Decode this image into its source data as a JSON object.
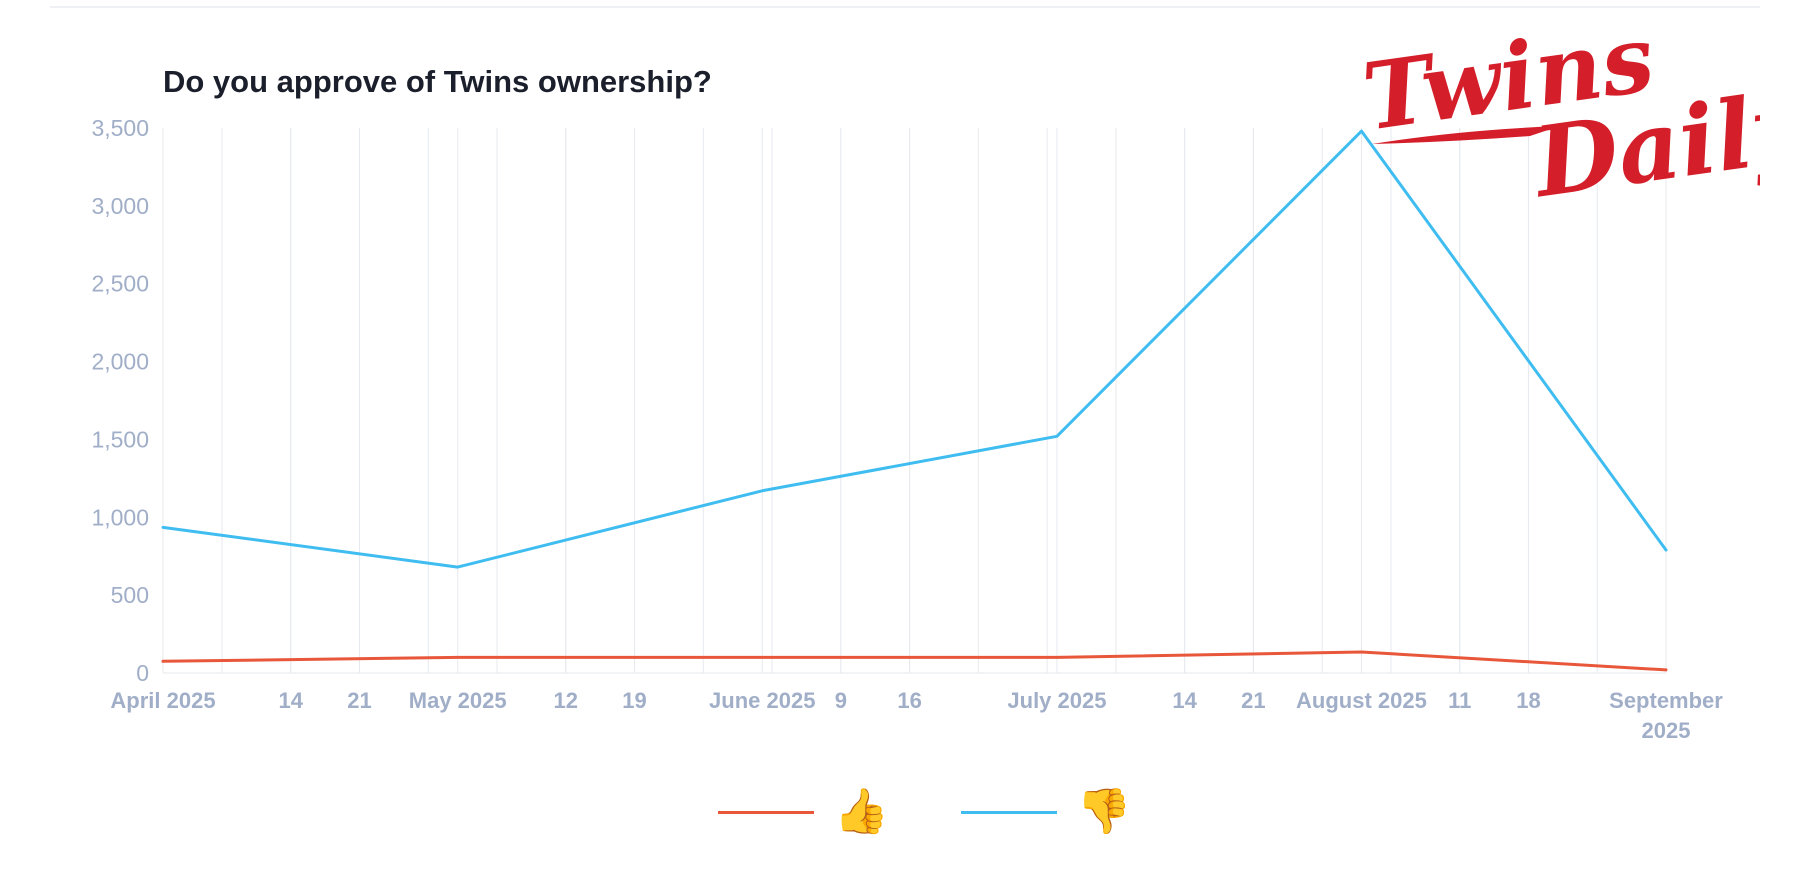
{
  "chart_data": {
    "type": "line",
    "title": "Do you approve of Twins ownership?",
    "xlabel": "",
    "ylabel": "",
    "ylim": [
      0,
      3500
    ],
    "yticks": [
      "0",
      "500",
      "1,000",
      "1,500",
      "2,000",
      "2,500",
      "3,000",
      "3,500"
    ],
    "xlim": [
      "2025-04-01",
      "2025-09-01"
    ],
    "xticks": [
      {
        "date": "2025-04-01",
        "label": "April 2025",
        "major": true
      },
      {
        "date": "2025-04-14",
        "label": "14",
        "major": false
      },
      {
        "date": "2025-04-21",
        "label": "21",
        "major": false
      },
      {
        "date": "2025-05-01",
        "label": "May 2025",
        "major": true
      },
      {
        "date": "2025-05-12",
        "label": "12",
        "major": false
      },
      {
        "date": "2025-05-19",
        "label": "19",
        "major": false
      },
      {
        "date": "2025-06-01",
        "label": "June 2025",
        "major": true
      },
      {
        "date": "2025-06-09",
        "label": "9",
        "major": false
      },
      {
        "date": "2025-06-16",
        "label": "16",
        "major": false
      },
      {
        "date": "2025-07-01",
        "label": "July 2025",
        "major": true
      },
      {
        "date": "2025-07-14",
        "label": "14",
        "major": false
      },
      {
        "date": "2025-07-21",
        "label": "21",
        "major": false
      },
      {
        "date": "2025-08-01",
        "label": "August 2025",
        "major": true
      },
      {
        "date": "2025-08-11",
        "label": "11",
        "major": false
      },
      {
        "date": "2025-08-18",
        "label": "18",
        "major": false
      },
      {
        "date": "2025-09-01",
        "label": "September 2025",
        "major": true
      }
    ],
    "grid": true,
    "legend_position": "bottom",
    "series": [
      {
        "name": "👍",
        "color": "#e8573a",
        "x": [
          "2025-04-01",
          "2025-05-01",
          "2025-06-01",
          "2025-07-01",
          "2025-08-01",
          "2025-09-01"
        ],
        "values": [
          75,
          100,
          100,
          100,
          135,
          20
        ]
      },
      {
        "name": "👎",
        "color": "#3fbdf0",
        "x": [
          "2025-04-01",
          "2025-05-01",
          "2025-06-01",
          "2025-07-01",
          "2025-08-01",
          "2025-09-01"
        ],
        "values": [
          935,
          680,
          1170,
          1520,
          3480,
          790
        ]
      }
    ]
  },
  "logo": {
    "text_line1": "Twins",
    "text_line2": "Daily",
    "color": "#d41f2a"
  }
}
